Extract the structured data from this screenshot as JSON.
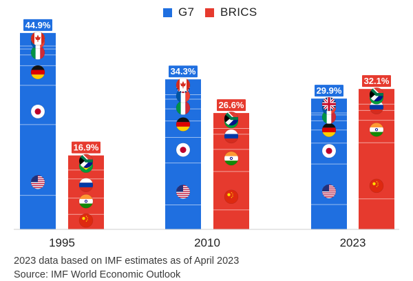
{
  "legend": [
    {
      "name": "G7",
      "color": "#1f6fe0"
    },
    {
      "name": "BRICS",
      "color": "#e63a2e"
    }
  ],
  "chart_data": {
    "type": "bar",
    "subtype": "stacked",
    "categories": [
      "1995",
      "2010",
      "2023"
    ],
    "series": [
      {
        "name": "G7",
        "color": "#1f6fe0",
        "values": [
          44.9,
          34.3,
          29.9
        ],
        "labels": [
          "44.9%",
          "34.3%",
          "29.9%"
        ]
      },
      {
        "name": "BRICS",
        "color": "#e63a2e",
        "values": [
          16.9,
          26.6,
          32.1
        ],
        "labels": [
          "16.9%",
          "26.6%",
          "32.1%"
        ]
      }
    ],
    "ylim": [
      0,
      50
    ],
    "grid": false,
    "legend_position": "top",
    "segment_icons": {
      "G7": [
        "us-flag",
        "japan-flag",
        "germany-flag",
        "italy-flag",
        "france-flag",
        "uk-flag",
        "canada-flag"
      ],
      "BRICS": [
        "china-flag",
        "india-flag",
        "russia-flag",
        "brazil-flag",
        "south-africa-flag"
      ]
    }
  },
  "footer": {
    "note": "2023 data based on IMF estimates as of April 2023",
    "source": "Source: IMF World Economic Outlook"
  }
}
